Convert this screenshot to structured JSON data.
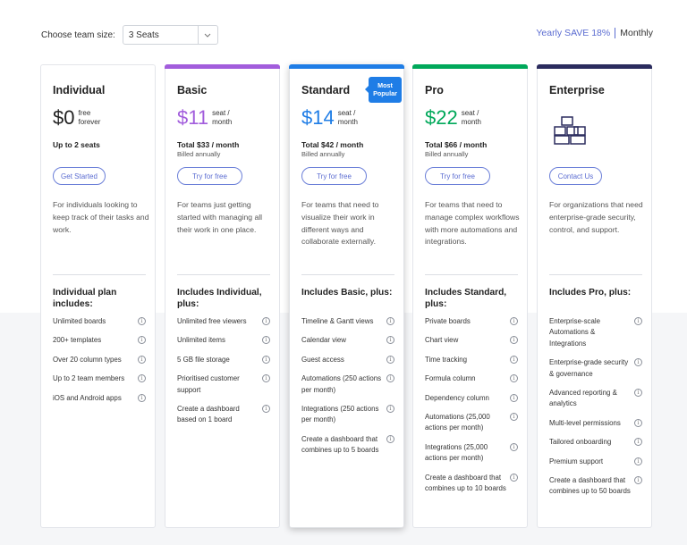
{
  "team": {
    "label": "Choose team size:",
    "value": "3 Seats"
  },
  "billing": {
    "yearly": "Yearly SAVE 18%",
    "monthly": "Monthly",
    "accent": "#5b6cd1"
  },
  "plans": [
    {
      "name": "Individual",
      "price": "$0",
      "unit1": "free",
      "unit2": "forever",
      "color": "#222222",
      "total": "Up to 2 seats",
      "billed": "",
      "cta": "Get Started",
      "desc": "For individuals looking to keep track of their tasks and work.",
      "includes": "Individual plan includes:",
      "features": [
        "Unlimited boards",
        "200+ templates",
        "Over 20 column types",
        "Up to 2 team members",
        "iOS and Android apps"
      ]
    },
    {
      "name": "Basic",
      "price": "$11",
      "unit1": "seat /",
      "unit2": "month",
      "color": "#a25ddc",
      "total": "Total $33 / month",
      "billed": "Billed annually",
      "cta": "Try for free",
      "desc": "For teams just getting started with managing all their work in one place.",
      "includes": "Includes Individual, plus:",
      "features": [
        "Unlimited free viewers",
        "Unlimited items",
        "5 GB file storage",
        "Prioritised customer support",
        "Create a dashboard based on 1 board"
      ]
    },
    {
      "name": "Standard",
      "price": "$14",
      "unit1": "seat /",
      "unit2": "month",
      "color": "#1f7de6",
      "badge": "Most Popular",
      "total": "Total $42 / month",
      "billed": "Billed annually",
      "cta": "Try for free",
      "desc": "For teams that need to visualize their work in different ways and collaborate externally.",
      "includes": "Includes Basic, plus:",
      "features": [
        "Timeline & Gantt views",
        "Calendar view",
        "Guest access",
        "Automations (250 actions per month)",
        "Integrations (250 actions per month)",
        "Create a dashboard that combines up to 5 boards"
      ]
    },
    {
      "name": "Pro",
      "price": "$22",
      "unit1": "seat /",
      "unit2": "month",
      "color": "#00a85a",
      "total": "Total $66 / month",
      "billed": "Billed annually",
      "cta": "Try for free",
      "desc": "For teams that need to manage complex workflows with more automations and integrations.",
      "includes": "Includes Standard, plus:",
      "features": [
        "Private boards",
        "Chart view",
        "Time tracking",
        "Formula column",
        "Dependency column",
        "Automations (25,000 actions per month)",
        "Integrations (25,000 actions per month)",
        "Create a dashboard that combines up to 10 boards"
      ]
    },
    {
      "name": "Enterprise",
      "price": "",
      "unit1": "",
      "unit2": "",
      "color": "#2b2c5e",
      "total": "",
      "billed": "",
      "cta": "Contact Us",
      "desc": "For organizations that need enterprise-grade security, control, and support.",
      "includes": "Includes Pro, plus:",
      "features": [
        "Enterprise-scale Automations & Integrations",
        "Enterprise-grade security & governance",
        "Advanced reporting & analytics",
        "Multi-level permissions",
        "Tailored onboarding",
        "Premium support",
        "Create a dashboard that combines up to 50 boards"
      ]
    }
  ]
}
